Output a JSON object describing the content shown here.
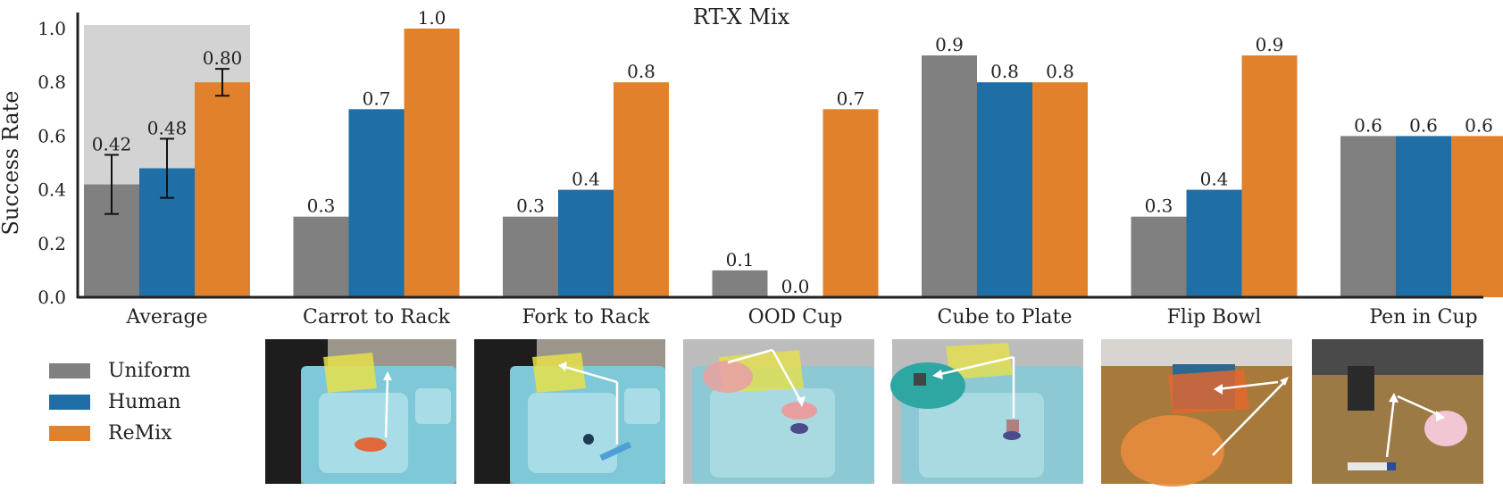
{
  "chart_data": {
    "type": "bar",
    "title": "RT-X Mix",
    "xlabel": "",
    "ylabel": "Success Rate",
    "ylim": [
      0.0,
      1.0
    ],
    "yticks": [
      "0.0",
      "0.2",
      "0.4",
      "0.6",
      "0.8",
      "1.0"
    ],
    "categories": [
      "Average",
      "Carrot to Rack",
      "Fork to Rack",
      "OOD Cup",
      "Cube to Plate",
      "Flip Bowl",
      "Pen in Cup"
    ],
    "series": [
      {
        "name": "Uniform",
        "color": "#808080",
        "values": [
          0.42,
          0.3,
          0.3,
          0.1,
          0.9,
          0.3,
          0.6
        ],
        "labels": [
          "0.42",
          "0.3",
          "0.3",
          "0.1",
          "0.9",
          "0.3",
          "0.6"
        ],
        "err": [
          0.11,
          null,
          null,
          null,
          null,
          null,
          null
        ]
      },
      {
        "name": "Human",
        "color": "#1f6ea5",
        "values": [
          0.48,
          0.7,
          0.4,
          0.0,
          0.8,
          0.4,
          0.6
        ],
        "labels": [
          "0.48",
          "0.7",
          "0.4",
          "0.0",
          "0.8",
          "0.4",
          "0.6"
        ],
        "err": [
          0.11,
          null,
          null,
          null,
          null,
          null,
          null
        ]
      },
      {
        "name": "ReMix",
        "color": "#e1812c",
        "values": [
          0.8,
          1.0,
          0.8,
          0.7,
          0.8,
          0.9,
          0.6
        ],
        "labels": [
          "0.80",
          "1.0",
          "0.8",
          "0.7",
          "0.8",
          "0.9",
          "0.6"
        ],
        "err": [
          0.05,
          null,
          null,
          null,
          null,
          null,
          null
        ]
      }
    ],
    "highlight_category": "Average",
    "highlight_color": "#d3d3d3",
    "grid": false,
    "legend_position": "bottom-left"
  },
  "thumbnails": [
    {
      "task": "Carrot to Rack",
      "icon": "carrot-to-rack-photo"
    },
    {
      "task": "Fork to Rack",
      "icon": "fork-to-rack-photo"
    },
    {
      "task": "OOD Cup",
      "icon": "ood-cup-photo"
    },
    {
      "task": "Cube to Plate",
      "icon": "cube-to-plate-photo"
    },
    {
      "task": "Flip Bowl",
      "icon": "flip-bowl-photo"
    },
    {
      "task": "Pen in Cup",
      "icon": "pen-in-cup-photo"
    }
  ]
}
